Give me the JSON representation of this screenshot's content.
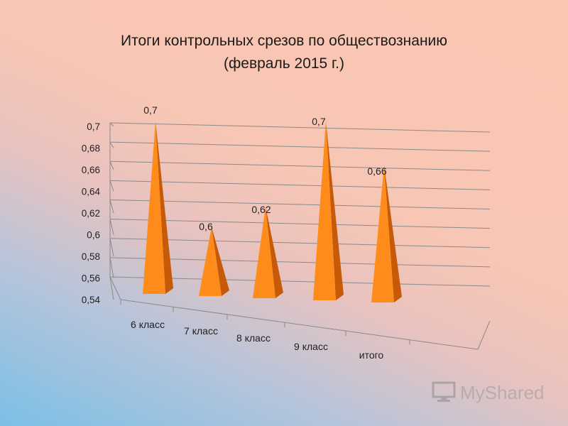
{
  "title_line1": "Итоги контрольных срезов по обществознанию",
  "title_line2": "(февраль 2015 г.)",
  "watermark": "MyShared",
  "chart_data": {
    "type": "bar",
    "bar_shape": "3d-pyramid",
    "title": "Итоги контрольных срезов по обществознанию (февраль 2015 г.)",
    "categories": [
      "6 класс",
      "7 класс",
      "8 класс",
      "9 класс",
      "итого"
    ],
    "values": [
      0.7,
      0.6,
      0.62,
      0.7,
      0.66
    ],
    "data_labels": [
      "0,7",
      "0,6",
      "0,62",
      "0,7",
      "0,66"
    ],
    "ylim": [
      0.54,
      0.7
    ],
    "yticks": [
      "0,54",
      "0,56",
      "0,58",
      "0,6",
      "0,62",
      "0,64",
      "0,66",
      "0,68",
      "0,7"
    ],
    "grid": true,
    "legend": "none",
    "colors": {
      "bar_front": "#ff8c1a",
      "bar_side": "#c65a08",
      "grid": "#8a8a8a"
    }
  }
}
